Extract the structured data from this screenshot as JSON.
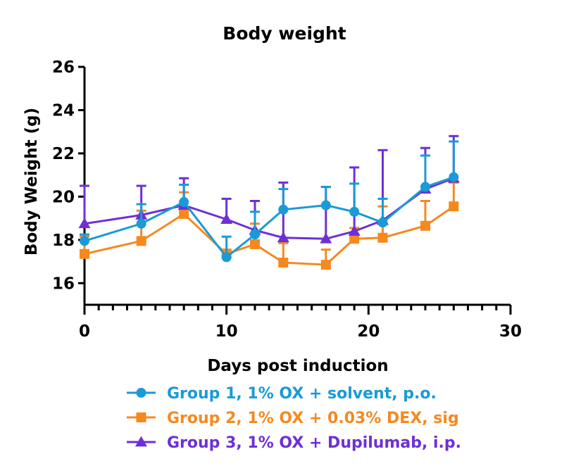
{
  "chart_data": {
    "type": "line",
    "title": "Body weight",
    "xlabel": "Days post induction",
    "ylabel": "Body Weight (g)",
    "xlim": [
      0,
      30
    ],
    "ylim": [
      15,
      26
    ],
    "x_ticks": [
      0,
      10,
      20,
      30
    ],
    "y_ticks": [
      16,
      18,
      20,
      22,
      24,
      26
    ],
    "grid": false,
    "legend_position": "bottom",
    "series": [
      {
        "name": "Group 1, 1% OX + solvent, p.o.",
        "color": "#1a9ad6",
        "marker": "circle",
        "x": [
          0,
          4,
          7,
          10,
          12,
          14,
          17,
          19,
          21,
          24,
          26
        ],
        "y": [
          17.95,
          18.75,
          19.75,
          17.2,
          18.25,
          19.4,
          19.6,
          19.3,
          18.8,
          20.45,
          20.9
        ],
        "error": [
          0.3,
          0.9,
          0.8,
          0.95,
          1.05,
          0.95,
          0.85,
          1.3,
          1.1,
          1.45,
          1.65
        ]
      },
      {
        "name": "Group 2, 1% OX + 0.03% DEX, sig",
        "color": "#f5891f",
        "marker": "square",
        "x": [
          0,
          4,
          7,
          10,
          12,
          14,
          17,
          19,
          21,
          24,
          26
        ],
        "y": [
          17.35,
          17.95,
          19.2,
          17.35,
          17.8,
          16.95,
          16.85,
          18.05,
          18.1,
          18.65,
          19.55
        ],
        "error": [
          0.8,
          1.4,
          1.0,
          0.2,
          0.95,
          0.9,
          0.7,
          0.5,
          1.45,
          1.15,
          1.1
        ]
      },
      {
        "name": "Group 3, 1% OX + Dupilumab, i.p.",
        "color": "#6e2fd6",
        "marker": "triangle",
        "x": [
          0,
          4,
          7,
          10,
          12,
          14,
          17,
          19,
          21,
          24,
          26
        ],
        "y": [
          18.75,
          19.15,
          19.6,
          18.95,
          18.45,
          18.1,
          18.05,
          18.4,
          18.9,
          20.35,
          20.85
        ],
        "error": [
          1.75,
          1.35,
          1.25,
          0.95,
          1.35,
          2.55,
          2.4,
          2.95,
          3.25,
          1.9,
          1.95
        ]
      }
    ]
  }
}
